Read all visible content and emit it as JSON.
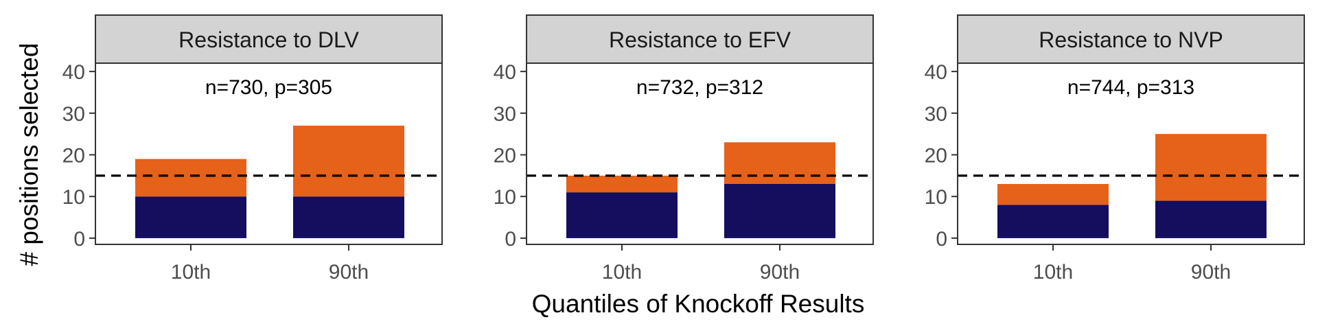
{
  "ylabel": "# positions selected",
  "xlabel": "Quantiles of Knockoff Results",
  "colors": {
    "bottom": "#150d5e",
    "top": "#e6611a",
    "strip_bg": "#d3d3d3",
    "frame": "#333333",
    "tick_text": "#4d4d4d",
    "reference_line": "#000000"
  },
  "chart_data": [
    {
      "type": "bar",
      "stacked": true,
      "title": "Resistance to DLV",
      "annotation": "n=730, p=305",
      "categories": [
        "10th",
        "90th"
      ],
      "series": [
        {
          "values": [
            10,
            10
          ]
        },
        {
          "values": [
            9,
            17
          ]
        }
      ],
      "ylim": [
        -1.5,
        42
      ],
      "yticks": [
        "0",
        "10",
        "20",
        "30",
        "40"
      ],
      "reference_line_y": 15,
      "grid": false
    },
    {
      "type": "bar",
      "stacked": true,
      "title": "Resistance to EFV",
      "annotation": "n=732, p=312",
      "categories": [
        "10th",
        "90th"
      ],
      "series": [
        {
          "values": [
            11,
            13
          ]
        },
        {
          "values": [
            4,
            10
          ]
        }
      ],
      "ylim": [
        -1.5,
        42
      ],
      "yticks": [
        "0",
        "10",
        "20",
        "30",
        "40"
      ],
      "reference_line_y": 15,
      "grid": false
    },
    {
      "type": "bar",
      "stacked": true,
      "title": "Resistance to NVP",
      "annotation": "n=744, p=313",
      "categories": [
        "10th",
        "90th"
      ],
      "series": [
        {
          "values": [
            8,
            9
          ]
        },
        {
          "values": [
            5,
            16
          ]
        }
      ],
      "ylim": [
        -1.5,
        42
      ],
      "yticks": [
        "0",
        "10",
        "20",
        "30",
        "40"
      ],
      "reference_line_y": 15,
      "grid": false
    }
  ]
}
